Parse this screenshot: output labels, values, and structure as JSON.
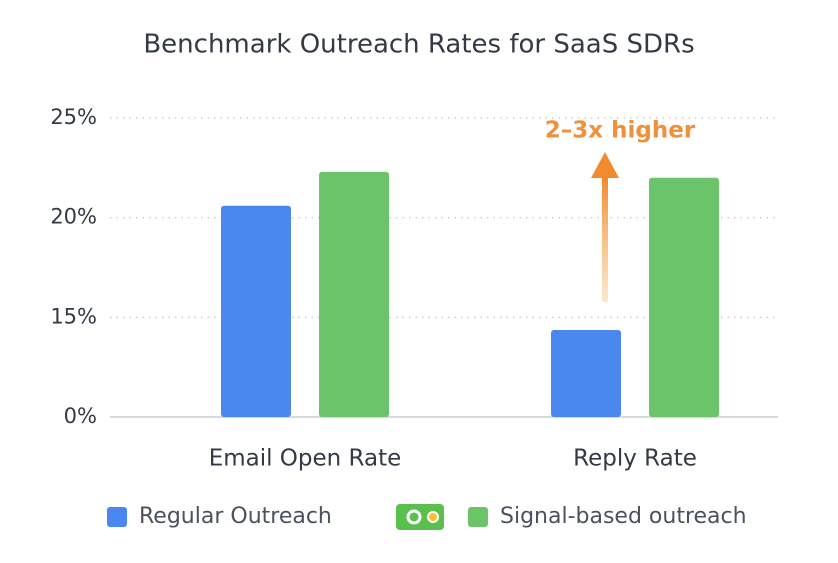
{
  "chart_data": {
    "type": "bar",
    "title": "Benchmark Outreach Rates for SaaS SDRs",
    "categories": [
      "Email Open Rate",
      "Reply Rate"
    ],
    "series": [
      {
        "name": "Regular Outreach",
        "color": "#4a87ee",
        "values": [
          20.6,
          13.1
        ]
      },
      {
        "name": "Signal-based outreach",
        "color": "#6cc46a",
        "values": [
          22.3,
          22
        ]
      }
    ],
    "ylim": [
      0,
      25
    ],
    "yticks": [
      {
        "value": 0,
        "label": "0%"
      },
      {
        "value": 15,
        "label": "15%"
      },
      {
        "value": 20,
        "label": "20%"
      },
      {
        "value": 25,
        "label": "25%"
      }
    ],
    "grid": true,
    "annotation": "2–3x higher"
  }
}
